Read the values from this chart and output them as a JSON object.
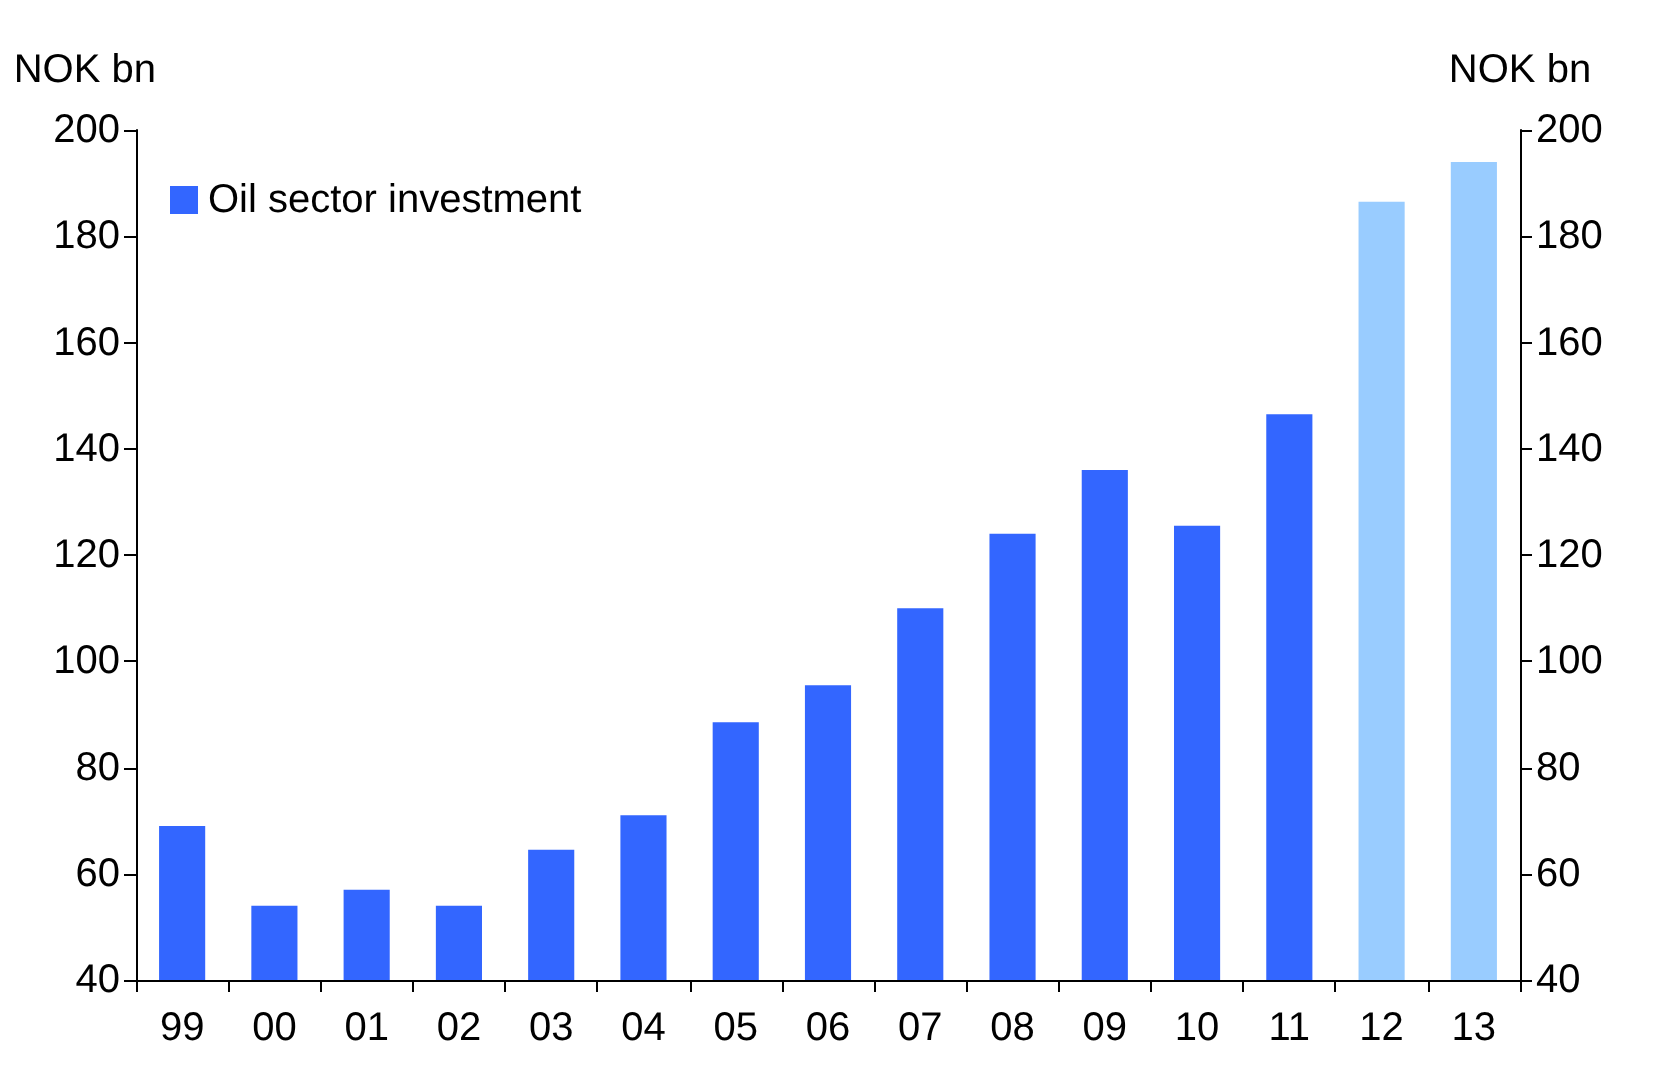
{
  "chart_data": {
    "type": "bar",
    "ylabel": "NOK bn",
    "y2label": "NOK bn",
    "categories": [
      "99",
      "00",
      "01",
      "02",
      "03",
      "04",
      "05",
      "06",
      "07",
      "08",
      "09",
      "10",
      "11",
      "12",
      "13"
    ],
    "series": [
      {
        "name": "Oil sector investment",
        "values": [
          69,
          54,
          57,
          54,
          64.5,
          71,
          88.5,
          95.5,
          110,
          124,
          136,
          125.5,
          146.5,
          186.5,
          194
        ],
        "colors": [
          "#3366ff",
          "#3366ff",
          "#3366ff",
          "#3366ff",
          "#3366ff",
          "#3366ff",
          "#3366ff",
          "#3366ff",
          "#3366ff",
          "#3366ff",
          "#3366ff",
          "#3366ff",
          "#3366ff",
          "#99ccff",
          "#99ccff"
        ]
      }
    ],
    "ylim": [
      40,
      200
    ],
    "yticks": [
      40,
      60,
      80,
      100,
      120,
      140,
      160,
      180,
      200
    ],
    "y2lim": [
      40,
      200
    ],
    "y2ticks": [
      40,
      60,
      80,
      100,
      120,
      140,
      160,
      180,
      200
    ],
    "grid": false,
    "legend": "top left"
  }
}
